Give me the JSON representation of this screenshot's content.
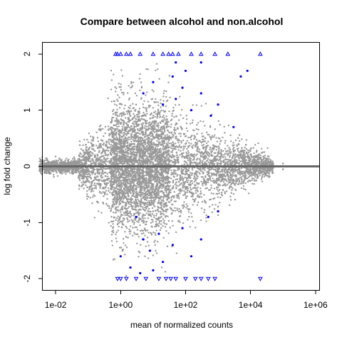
{
  "chart_data": {
    "type": "scatter",
    "title": "Compare between alcohol and non.alcohol",
    "xlabel": "mean of normalized counts",
    "ylabel": "log fold change",
    "x_scale": "log10",
    "xlim": [
      0.004,
      1300000
    ],
    "ylim": [
      -2.2,
      2.2
    ],
    "x_ticks": [
      {
        "value": 0.01,
        "label": "1e-02"
      },
      {
        "value": 1,
        "label": "1e+00"
      },
      {
        "value": 100,
        "label": "1e+02"
      },
      {
        "value": 10000,
        "label": "1e+04"
      },
      {
        "value": 1000000,
        "label": "1e+06"
      }
    ],
    "y_ticks": [
      {
        "value": -2,
        "label": "-2"
      },
      {
        "value": -1,
        "label": "-1"
      },
      {
        "value": 0,
        "label": "0"
      },
      {
        "value": 1,
        "label": "1"
      },
      {
        "value": 2,
        "label": "2"
      }
    ],
    "grid": false,
    "reference_line": {
      "y": 0,
      "color": "#666666"
    },
    "colors": {
      "not_significant": "#999999",
      "significant": "#0000ff",
      "axis": "#000000"
    },
    "series": [
      {
        "values_note_free": true,
        "color": "#999999",
        "marker": "dot",
        "points": [
          [
            0.005,
            0.02
          ],
          [
            0.02,
            0.05
          ],
          [
            0.05,
            -0.03
          ],
          [
            0.1,
            0.1
          ],
          [
            0.2,
            -0.1
          ],
          [
            0.3,
            0.3
          ],
          [
            0.5,
            -0.4
          ],
          [
            1,
            0.6
          ],
          [
            1,
            -0.6
          ],
          [
            2,
            0.9
          ],
          [
            2,
            -0.9
          ],
          [
            3,
            1.1
          ],
          [
            5,
            -1.0
          ],
          [
            10,
            0.8
          ],
          [
            10,
            -0.8
          ],
          [
            30,
            0.5
          ],
          [
            30,
            -0.5
          ],
          [
            100,
            0.4
          ],
          [
            100,
            -0.4
          ],
          [
            1000,
            0.25
          ],
          [
            1000,
            -0.25
          ],
          [
            10000,
            0.12
          ],
          [
            10000,
            -0.12
          ],
          [
            100000,
            0.05
          ],
          [
            100000,
            -0.05
          ]
        ]
      },
      {
        "color": "#0000ff",
        "marker": "dot",
        "points": [
          [
            5,
            1.3
          ],
          [
            10,
            1.5
          ],
          [
            20,
            1.1
          ],
          [
            40,
            1.6
          ],
          [
            50,
            1.2
          ],
          [
            80,
            1.4
          ],
          [
            100,
            1.7
          ],
          [
            150,
            1.0
          ],
          [
            300,
            1.3
          ],
          [
            600,
            0.9
          ],
          [
            1000,
            1.1
          ],
          [
            3000,
            0.7
          ],
          [
            5000,
            1.6
          ],
          [
            8000,
            1.7
          ],
          [
            300,
            1.85
          ],
          [
            50,
            1.85
          ],
          [
            3,
            -0.9
          ],
          [
            5,
            -1.3
          ],
          [
            8,
            -1.5
          ],
          [
            15,
            -1.2
          ],
          [
            20,
            -1.7
          ],
          [
            40,
            -1.4
          ],
          [
            80,
            -1.1
          ],
          [
            150,
            -1.6
          ],
          [
            300,
            -1.3
          ],
          [
            500,
            -0.9
          ],
          [
            1000,
            -0.8
          ],
          [
            1,
            -1.6
          ],
          [
            2,
            -1.8
          ],
          [
            4,
            -1.9
          ],
          [
            10,
            -1.85
          ]
        ]
      },
      {
        "color": "#0000ff",
        "marker": "triangle-up",
        "points": [
          [
            0.7,
            2
          ],
          [
            0.8,
            2
          ],
          [
            1,
            2
          ],
          [
            1.5,
            2
          ],
          [
            2,
            2
          ],
          [
            4,
            2
          ],
          [
            10,
            2
          ],
          [
            20,
            2
          ],
          [
            30,
            2
          ],
          [
            40,
            2
          ],
          [
            60,
            2
          ],
          [
            150,
            2
          ],
          [
            300,
            2
          ],
          [
            800,
            2
          ],
          [
            2000,
            2
          ],
          [
            20000,
            2
          ]
        ]
      },
      {
        "color": "#0000ff",
        "marker": "triangle-down",
        "points": [
          [
            0.8,
            -2
          ],
          [
            1,
            -2
          ],
          [
            1.5,
            -2
          ],
          [
            3,
            -2
          ],
          [
            6,
            -2
          ],
          [
            15,
            -2
          ],
          [
            25,
            -2
          ],
          [
            35,
            -2
          ],
          [
            50,
            -2
          ],
          [
            100,
            -2
          ],
          [
            200,
            -2
          ],
          [
            300,
            -2
          ],
          [
            500,
            -2
          ],
          [
            800,
            -2
          ],
          [
            20000,
            -2
          ]
        ]
      }
    ]
  }
}
